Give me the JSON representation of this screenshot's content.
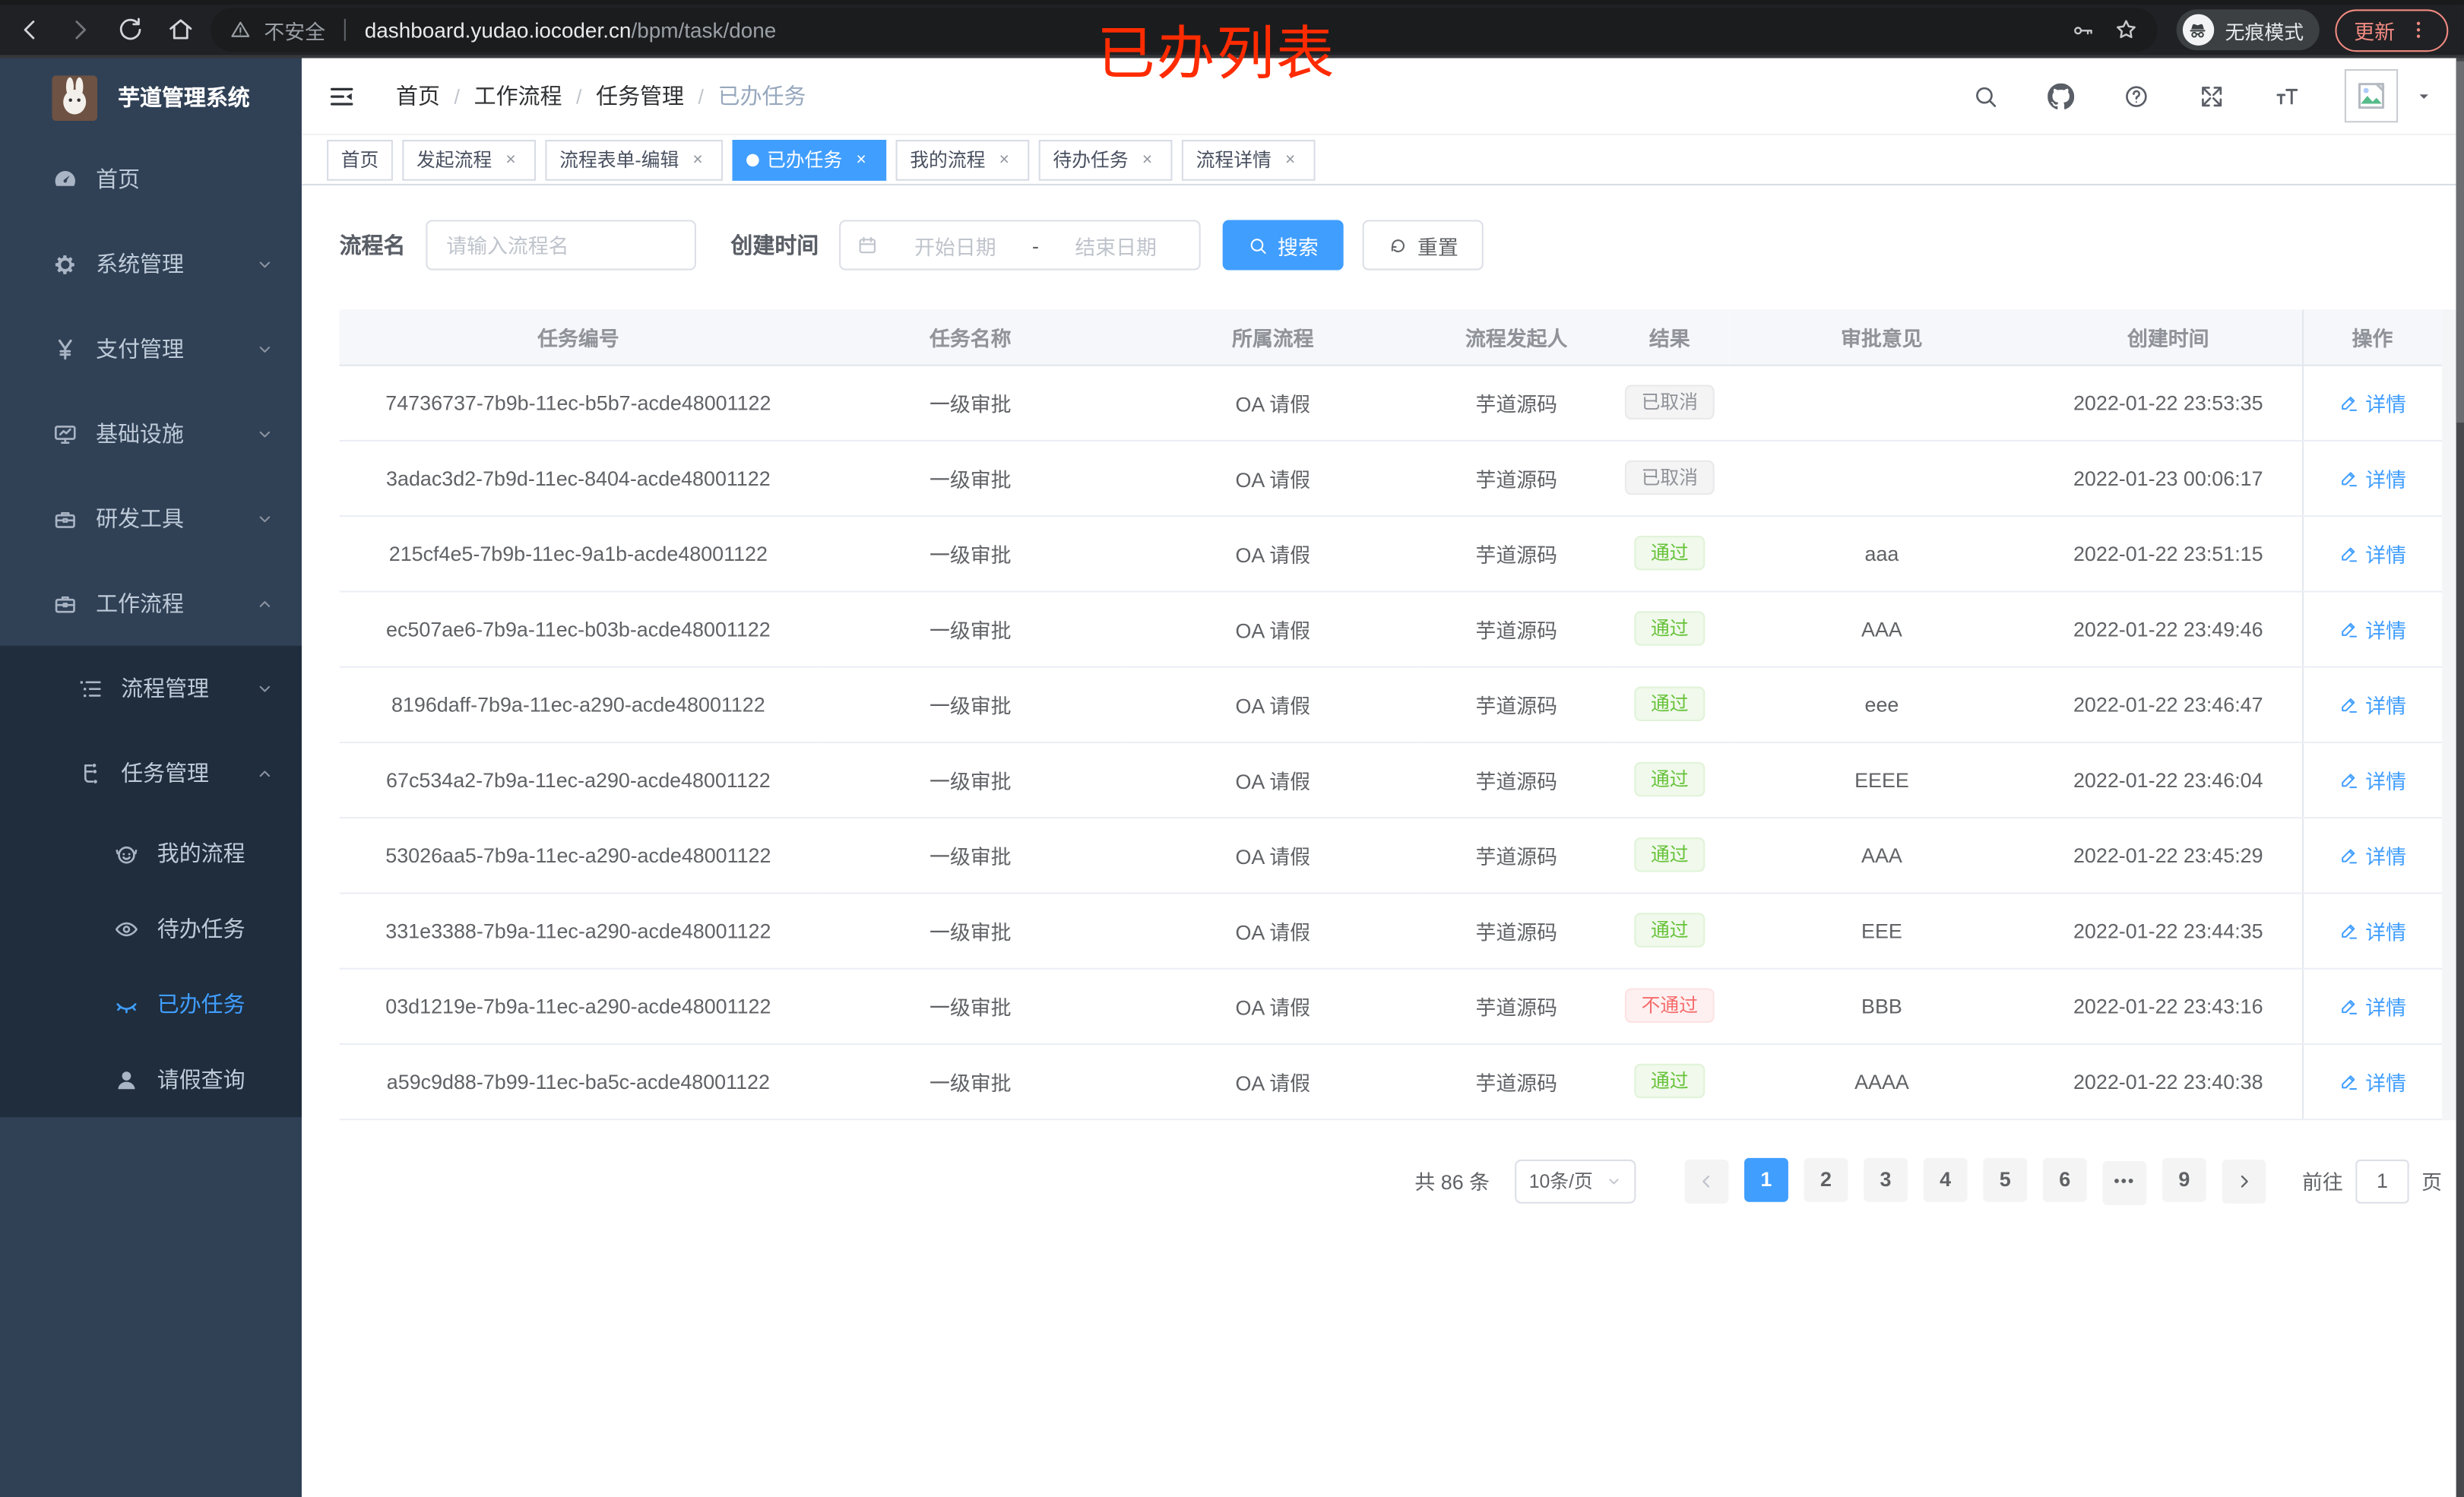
{
  "colors": {
    "accent": "#409eff",
    "success": "#67c23a",
    "danger": "#f56c6c",
    "info": "#909399",
    "sidebar_bg": "#304156",
    "submenu_bg": "#1f2d3d",
    "annotation": "#fe2b00"
  },
  "browser": {
    "security_label": "不安全",
    "url_host": "dashboard.yudao.iocoder.cn",
    "url_path": "/bpm/task/done",
    "incognito_label": "无痕模式",
    "update_label": "更新"
  },
  "annotation": {
    "text": "已办列表"
  },
  "sidebar": {
    "title": "芋道管理系统",
    "items": [
      {
        "slug": "home",
        "label": "首页",
        "icon": "gauge",
        "level": 1
      },
      {
        "slug": "system-management",
        "label": "系统管理",
        "icon": "gear",
        "level": 1,
        "chevron": "down"
      },
      {
        "slug": "payment-management",
        "label": "支付管理",
        "icon": "yen",
        "level": 1,
        "chevron": "down"
      },
      {
        "slug": "infrastructure",
        "label": "基础设施",
        "icon": "monitor",
        "level": 1,
        "chevron": "down"
      },
      {
        "slug": "dev-tools",
        "label": "研发工具",
        "icon": "toolbox",
        "level": 1,
        "chevron": "down"
      },
      {
        "slug": "workflow",
        "label": "工作流程",
        "icon": "briefcase",
        "level": 1,
        "chevron": "up"
      },
      {
        "slug": "process-management",
        "label": "流程管理",
        "icon": "tree",
        "level": 2,
        "chevron": "down",
        "dark": true
      },
      {
        "slug": "task-management",
        "label": "任务管理",
        "icon": "flow",
        "level": 2,
        "chevron": "up",
        "dark": true
      },
      {
        "slug": "my-process",
        "label": "我的流程",
        "icon": "face",
        "level": 3,
        "dark": true
      },
      {
        "slug": "todo-tasks",
        "label": "待办任务",
        "icon": "eye",
        "level": 3,
        "dark": true
      },
      {
        "slug": "done-tasks",
        "label": "已办任务",
        "icon": "eye-closed",
        "level": 3,
        "dark": true,
        "active": true
      },
      {
        "slug": "leave-query",
        "label": "请假查询",
        "icon": "user",
        "level": 3,
        "dark": true
      }
    ]
  },
  "header": {
    "breadcrumb": [
      "首页",
      "工作流程",
      "任务管理",
      "已办任务"
    ],
    "right_icons": [
      "search",
      "github",
      "question",
      "fullscreen",
      "text-size"
    ]
  },
  "tabs": [
    {
      "slug": "home",
      "label": "首页",
      "closable": false,
      "active": false
    },
    {
      "slug": "initiate-process",
      "label": "发起流程",
      "closable": true,
      "active": false
    },
    {
      "slug": "process-form-edit",
      "label": "流程表单-编辑",
      "closable": true,
      "active": false
    },
    {
      "slug": "done-tasks",
      "label": "已办任务",
      "closable": true,
      "active": true
    },
    {
      "slug": "my-process",
      "label": "我的流程",
      "closable": true,
      "active": false
    },
    {
      "slug": "todo-tasks",
      "label": "待办任务",
      "closable": true,
      "active": false
    },
    {
      "slug": "process-detail",
      "label": "流程详情",
      "closable": true,
      "active": false
    }
  ],
  "filters": {
    "name_label": "流程名",
    "name_placeholder": "请输入流程名",
    "date_label": "创建时间",
    "date_start_placeholder": "开始日期",
    "date_separator": "-",
    "date_end_placeholder": "结束日期",
    "search_label": "搜索",
    "reset_label": "重置"
  },
  "table": {
    "columns": [
      "任务编号",
      "任务名称",
      "所属流程",
      "流程发起人",
      "结果",
      "审批意见",
      "创建时间",
      "操作"
    ],
    "action_label": "详情",
    "rows": [
      {
        "id": "74736737-7b9b-11ec-b5b7-acde48001122",
        "name": "一级审批",
        "process": "OA 请假",
        "starter": "芋道源码",
        "result": "已取消",
        "result_type": "info",
        "comment": "",
        "created": "2022-01-22 23:53:35"
      },
      {
        "id": "3adac3d2-7b9d-11ec-8404-acde48001122",
        "name": "一级审批",
        "process": "OA 请假",
        "starter": "芋道源码",
        "result": "已取消",
        "result_type": "info",
        "comment": "",
        "created": "2022-01-23 00:06:17"
      },
      {
        "id": "215cf4e5-7b9b-11ec-9a1b-acde48001122",
        "name": "一级审批",
        "process": "OA 请假",
        "starter": "芋道源码",
        "result": "通过",
        "result_type": "success",
        "comment": "aaa",
        "created": "2022-01-22 23:51:15"
      },
      {
        "id": "ec507ae6-7b9a-11ec-b03b-acde48001122",
        "name": "一级审批",
        "process": "OA 请假",
        "starter": "芋道源码",
        "result": "通过",
        "result_type": "success",
        "comment": "AAA",
        "created": "2022-01-22 23:49:46"
      },
      {
        "id": "8196daff-7b9a-11ec-a290-acde48001122",
        "name": "一级审批",
        "process": "OA 请假",
        "starter": "芋道源码",
        "result": "通过",
        "result_type": "success",
        "comment": "eee",
        "created": "2022-01-22 23:46:47"
      },
      {
        "id": "67c534a2-7b9a-11ec-a290-acde48001122",
        "name": "一级审批",
        "process": "OA 请假",
        "starter": "芋道源码",
        "result": "通过",
        "result_type": "success",
        "comment": "EEEE",
        "created": "2022-01-22 23:46:04"
      },
      {
        "id": "53026aa5-7b9a-11ec-a290-acde48001122",
        "name": "一级审批",
        "process": "OA 请假",
        "starter": "芋道源码",
        "result": "通过",
        "result_type": "success",
        "comment": "AAA",
        "created": "2022-01-22 23:45:29"
      },
      {
        "id": "331e3388-7b9a-11ec-a290-acde48001122",
        "name": "一级审批",
        "process": "OA 请假",
        "starter": "芋道源码",
        "result": "通过",
        "result_type": "success",
        "comment": "EEE",
        "created": "2022-01-22 23:44:35"
      },
      {
        "id": "03d1219e-7b9a-11ec-a290-acde48001122",
        "name": "一级审批",
        "process": "OA 请假",
        "starter": "芋道源码",
        "result": "不通过",
        "result_type": "danger",
        "comment": "BBB",
        "created": "2022-01-22 23:43:16"
      },
      {
        "id": "a59c9d88-7b99-11ec-ba5c-acde48001122",
        "name": "一级审批",
        "process": "OA 请假",
        "starter": "芋道源码",
        "result": "通过",
        "result_type": "success",
        "comment": "AAAA",
        "created": "2022-01-22 23:40:38"
      }
    ]
  },
  "pagination": {
    "total_text": "共 86 条",
    "page_size": "10条/页",
    "pages": [
      "1",
      "2",
      "3",
      "4",
      "5",
      "6",
      "•••",
      "9"
    ],
    "active_page": "1",
    "jump_prefix": "前往",
    "jump_value": "1",
    "jump_suffix": "页"
  }
}
